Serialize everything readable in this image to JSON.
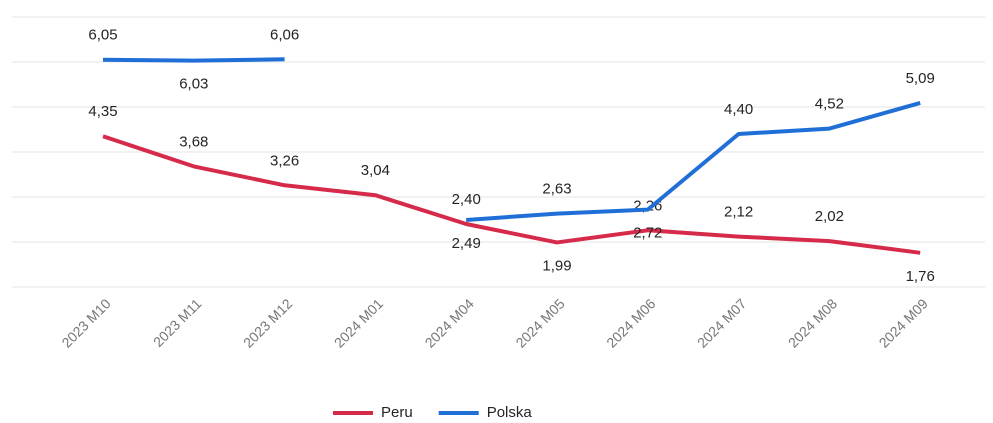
{
  "chart_data": {
    "type": "line",
    "categories": [
      "2023 M10",
      "2023 M11",
      "2023 M12",
      "2024 M01",
      "2024 M04",
      "2024 M05",
      "2024 M06",
      "2024 M07",
      "2024 M08",
      "2024 M09"
    ],
    "series": [
      {
        "name": "Peru",
        "color": "#d62a4b",
        "values": [
          4.35,
          3.68,
          3.26,
          3.04,
          2.4,
          1.99,
          2.26,
          2.12,
          2.02,
          1.76
        ],
        "value_labels": [
          "4,35",
          "3,68",
          "3,26",
          "3,04",
          "2,40",
          "1,99",
          "2,26",
          "2,12",
          "2,02",
          "1,76"
        ]
      },
      {
        "name": "Polska",
        "color": "#1f6fd6",
        "values": [
          6.05,
          6.03,
          6.06,
          null,
          2.49,
          2.63,
          2.72,
          4.4,
          4.52,
          5.09
        ],
        "value_labels": [
          "6,05",
          "6,03",
          "6,06",
          null,
          "2,49",
          "2,63",
          "2,72",
          "4,40",
          "4,52",
          "5,09"
        ]
      }
    ],
    "ylim": [
      1,
      7
    ],
    "yticks": [
      1,
      2,
      3,
      4,
      5,
      6,
      7
    ],
    "grid": true,
    "legend": "bottom"
  }
}
